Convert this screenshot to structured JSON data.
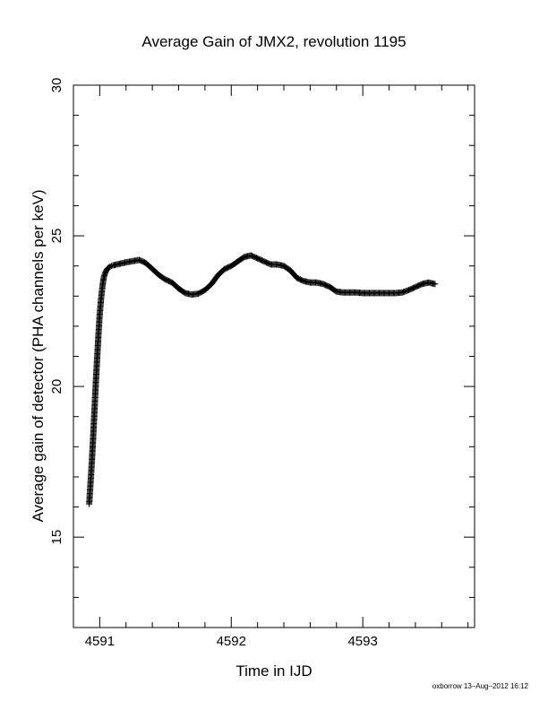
{
  "chart_data": {
    "type": "scatter",
    "title": "Average Gain of JMX2, revolution 1195",
    "xlabel": "Time in IJD",
    "ylabel": "Average gain of detector (PHA channels per keV)",
    "xlim": [
      4590.8,
      4593.85
    ],
    "ylim": [
      12,
      30
    ],
    "xticks": [
      4591,
      4592,
      4593
    ],
    "yticks": [
      15,
      20,
      25,
      30
    ],
    "marker": "plus",
    "grid": false,
    "series": [
      {
        "x": [
          4590.92,
          4590.93,
          4590.94,
          4590.95,
          4590.96,
          4590.97,
          4590.98,
          4590.99,
          4591.0,
          4591.01,
          4591.02,
          4591.03,
          4591.04,
          4591.05,
          4591.06,
          4591.08,
          4591.1,
          4591.15,
          4591.2,
          4591.25,
          4591.3,
          4591.35,
          4591.4,
          4591.45,
          4591.5,
          4591.55,
          4591.6,
          4591.65,
          4591.7,
          4591.75,
          4591.8,
          4591.85,
          4591.9,
          4591.95,
          4592.0,
          4592.05,
          4592.1,
          4592.15,
          4592.2,
          4592.25,
          4592.3,
          4592.35,
          4592.4,
          4592.45,
          4592.5,
          4592.55,
          4592.6,
          4592.65,
          4592.7,
          4592.75,
          4592.8,
          4592.85,
          4592.9,
          4592.95,
          4593.0,
          4593.05,
          4593.1,
          4593.15,
          4593.2,
          4593.25,
          4593.3,
          4593.35,
          4593.4,
          4593.45,
          4593.5,
          4593.55
        ],
        "y": [
          16.1,
          16.8,
          17.5,
          18.3,
          19.2,
          20.1,
          20.9,
          21.7,
          22.4,
          22.9,
          23.3,
          23.6,
          23.75,
          23.85,
          23.92,
          23.98,
          24.02,
          24.07,
          24.12,
          24.16,
          24.2,
          24.1,
          23.9,
          23.7,
          23.55,
          23.45,
          23.25,
          23.1,
          23.05,
          23.08,
          23.2,
          23.4,
          23.7,
          23.9,
          24.0,
          24.15,
          24.3,
          24.35,
          24.25,
          24.15,
          24.05,
          24.05,
          24.0,
          23.85,
          23.6,
          23.5,
          23.45,
          23.45,
          23.4,
          23.3,
          23.15,
          23.12,
          23.12,
          23.12,
          23.1,
          23.1,
          23.1,
          23.1,
          23.1,
          23.1,
          23.12,
          23.2,
          23.3,
          23.4,
          23.45,
          23.4
        ]
      }
    ]
  },
  "footer": "oxborrow 13–Aug–2012 16:12"
}
